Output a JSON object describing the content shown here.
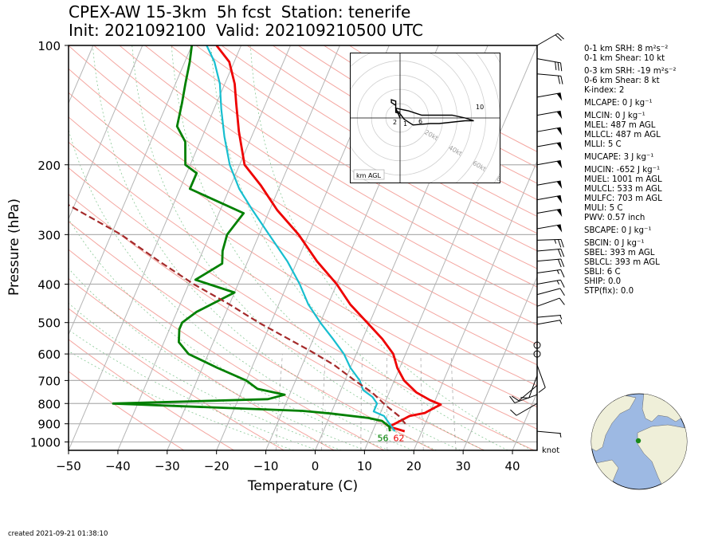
{
  "title_line1": "CPEX-AW 15-3km  5h fcst  Station: tenerife",
  "title_line2": "Init: 2021092100  Valid: 202109210500 UTC",
  "created": "created 2021-09-21 01:38:10",
  "wind_unit": "knot",
  "hodograph": {
    "label": "km AGL",
    "ring_labels": [
      "20kt",
      "40kt",
      "60kt",
      "80kt"
    ],
    "height_labels": [
      "2",
      "1",
      "6",
      "10"
    ]
  },
  "surface_labels": {
    "dewpoint": "56",
    "temperature": "62"
  },
  "indices": [
    {
      "label": "0-1 km SRH: 8 m²s⁻²"
    },
    {
      "label": "0-1 km Shear: 10 kt"
    },
    {
      "label": "0-3 km SRH: -19 m²s⁻²"
    },
    {
      "label": "0-6 km Shear: 8 kt"
    },
    {
      "label": "K-index: 2"
    },
    {
      "label": "MLCAPE: 0 J kg⁻¹"
    },
    {
      "label": "MLCIN: 0 J kg⁻¹"
    },
    {
      "label": "MLEL: 487 m AGL"
    },
    {
      "label": "MLLCL: 487 m AGL"
    },
    {
      "label": "MLLI: 5 C"
    },
    {
      "label": "MUCAPE: 3 J kg⁻¹"
    },
    {
      "label": "MUCIN: -652 J kg⁻¹"
    },
    {
      "label": "MUEL: 1001 m AGL"
    },
    {
      "label": "MULCL: 533 m AGL"
    },
    {
      "label": "MULFC: 703 m AGL"
    },
    {
      "label": "MULI: 5 C"
    },
    {
      "label": "PWV: 0.57 inch"
    },
    {
      "label": "SBCAPE: 0 J kg⁻¹"
    },
    {
      "label": "SBCIN: 0 J kg⁻¹"
    },
    {
      "label": "SBEL: 393 m AGL"
    },
    {
      "label": "SBLCL: 393 m AGL"
    },
    {
      "label": "SBLI: 6 C"
    },
    {
      "label": "SHIP: 0.0"
    },
    {
      "label": "STP(fix): 0.0"
    }
  ],
  "chart_data": {
    "type": "line",
    "subtype": "skew-T log-P sounding",
    "xlabel": "Temperature (C)",
    "ylabel": "Pressure (hPa)",
    "xlim": [
      -50,
      45
    ],
    "ylim": [
      1050,
      100
    ],
    "yscale": "log",
    "x_ticks": [
      "−50",
      "−40",
      "−30",
      "−20",
      "−10",
      "0",
      "10",
      "20",
      "30",
      "40"
    ],
    "x_tick_values": [
      -50,
      -40,
      -30,
      -20,
      -10,
      0,
      10,
      20,
      30,
      40
    ],
    "y_ticks": [
      "100",
      "200",
      "300",
      "400",
      "500",
      "600",
      "700",
      "800",
      "900",
      "1000"
    ],
    "y_tick_values": [
      100,
      200,
      300,
      400,
      500,
      600,
      700,
      800,
      900,
      1000
    ],
    "colors": {
      "temperature": "#ee0000",
      "dewpoint": "#008000",
      "wetbulb": "#17becf",
      "parcel": "#a52a2a"
    },
    "series": [
      {
        "key": "temperature",
        "points": [
          [
            16.5,
            940
          ],
          [
            13,
            915
          ],
          [
            16.2,
            860
          ],
          [
            19,
            845
          ],
          [
            20.5,
            820
          ],
          [
            21.5,
            805
          ],
          [
            19,
            785
          ],
          [
            15.5,
            750
          ],
          [
            12,
            700
          ],
          [
            9.5,
            650
          ],
          [
            7.5,
            600
          ],
          [
            4,
            550
          ],
          [
            -0.5,
            500
          ],
          [
            -5.5,
            450
          ],
          [
            -10,
            400
          ],
          [
            -16,
            350
          ],
          [
            -22,
            300
          ],
          [
            -28.5,
            260
          ],
          [
            -34,
            225
          ],
          [
            -39,
            200
          ],
          [
            -43,
            165
          ],
          [
            -46,
            140
          ],
          [
            -48,
            125
          ],
          [
            -51,
            110
          ],
          [
            -55,
            100
          ]
        ]
      },
      {
        "key": "wetbulb",
        "points": [
          [
            14.5,
            940
          ],
          [
            13,
            905
          ],
          [
            11,
            860
          ],
          [
            8.5,
            838
          ],
          [
            8.5,
            800
          ],
          [
            7,
            770
          ],
          [
            4.5,
            740
          ],
          [
            3,
            700
          ],
          [
            0,
            650
          ],
          [
            -2.5,
            600
          ],
          [
            -6,
            550
          ],
          [
            -10,
            500
          ],
          [
            -14,
            450
          ],
          [
            -17.5,
            400
          ],
          [
            -22,
            350
          ],
          [
            -28,
            300
          ],
          [
            -33.5,
            260
          ],
          [
            -38,
            230
          ],
          [
            -42,
            200
          ],
          [
            -45.5,
            170
          ],
          [
            -48.5,
            145
          ],
          [
            -51,
            125
          ],
          [
            -54,
            110
          ],
          [
            -57,
            100
          ]
        ]
      },
      {
        "key": "dewpoint",
        "points": [
          [
            13.5,
            940
          ],
          [
            13,
            915
          ],
          [
            11,
            885
          ],
          [
            8,
            870
          ],
          [
            0,
            848
          ],
          [
            -6,
            835
          ],
          [
            -45,
            800
          ],
          [
            -14,
            780
          ],
          [
            -11,
            760
          ],
          [
            -17,
            735
          ],
          [
            -20,
            700
          ],
          [
            -27,
            650
          ],
          [
            -34,
            600
          ],
          [
            -37,
            560
          ],
          [
            -38,
            520
          ],
          [
            -38,
            500
          ],
          [
            -36,
            470
          ],
          [
            -30,
            420
          ],
          [
            -39,
            390
          ],
          [
            -35,
            355
          ],
          [
            -36,
            330
          ],
          [
            -36.5,
            300
          ],
          [
            -35,
            265
          ],
          [
            -48,
            230
          ],
          [
            -48,
            210
          ],
          [
            -51,
            200
          ],
          [
            -53,
            175
          ],
          [
            -56,
            160
          ],
          [
            -57,
            140
          ],
          [
            -58,
            125
          ],
          [
            -59,
            110
          ],
          [
            -60,
            100
          ]
        ]
      },
      {
        "key": "parcel",
        "points": [
          [
            16,
            900
          ],
          [
            14,
            860
          ],
          [
            10.5,
            810
          ],
          [
            6.5,
            750
          ],
          [
            2,
            700
          ],
          [
            -3.5,
            640
          ],
          [
            -9.5,
            590
          ],
          [
            -15,
            550
          ],
          [
            -22.5,
            500
          ],
          [
            -30,
            450
          ],
          [
            -39,
            400
          ],
          [
            -48,
            350
          ],
          [
            -58,
            300
          ],
          [
            -72,
            250
          ],
          [
            -88,
            200
          ],
          [
            -100,
            165
          ],
          [
            -115,
            135
          ]
        ]
      }
    ],
    "surface": {
      "temperature_f": 62,
      "dewpoint_f": 56
    },
    "wind_barbs": [
      {
        "p": 940,
        "spd": 5,
        "dir": 95
      },
      {
        "p": 800,
        "spd": 10,
        "dir": 240
      },
      {
        "p": 760,
        "spd": 10,
        "dir": 250
      },
      {
        "p": 720,
        "spd": 10,
        "dir": 230
      },
      {
        "p": 680,
        "spd": 10,
        "dir": 200
      },
      {
        "p": 640,
        "spd": 10,
        "dir": 160
      },
      {
        "p": 600,
        "spd": 0,
        "dir": 0
      },
      {
        "p": 570,
        "spd": 0,
        "dir": 0
      },
      {
        "p": 505,
        "spd": 5,
        "dir": 80
      },
      {
        "p": 485,
        "spd": 5,
        "dir": 85
      },
      {
        "p": 455,
        "spd": 10,
        "dir": 70
      },
      {
        "p": 425,
        "spd": 10,
        "dir": 75
      },
      {
        "p": 400,
        "spd": 15,
        "dir": 80
      },
      {
        "p": 375,
        "spd": 15,
        "dir": 82
      },
      {
        "p": 350,
        "spd": 20,
        "dir": 85
      },
      {
        "p": 330,
        "spd": 20,
        "dir": 85
      },
      {
        "p": 310,
        "spd": 25,
        "dir": 88
      },
      {
        "p": 290,
        "spd": 50,
        "dir": 80
      },
      {
        "p": 265,
        "spd": 50,
        "dir": 80
      },
      {
        "p": 245,
        "spd": 50,
        "dir": 80
      },
      {
        "p": 225,
        "spd": 50,
        "dir": 80
      },
      {
        "p": 200,
        "spd": 50,
        "dir": 80
      },
      {
        "p": 180,
        "spd": 50,
        "dir": 80
      },
      {
        "p": 165,
        "spd": 50,
        "dir": 80
      },
      {
        "p": 150,
        "spd": 50,
        "dir": 80
      },
      {
        "p": 135,
        "spd": 50,
        "dir": 80
      },
      {
        "p": 118,
        "spd": 20,
        "dir": 95
      },
      {
        "p": 108,
        "spd": 30,
        "dir": 100
      },
      {
        "p": 100,
        "spd": 20,
        "dir": 60
      }
    ],
    "hodograph_points_kt": [
      [
        0,
        0
      ],
      [
        -1,
        -7
      ],
      [
        2,
        -5
      ],
      [
        5,
        -2
      ],
      [
        12,
        -2
      ],
      [
        15,
        0
      ],
      [
        17,
        2
      ],
      [
        15,
        2
      ],
      [
        9,
        4
      ],
      [
        7,
        4
      ],
      [
        3,
        5
      ],
      [
        1,
        1
      ],
      [
        0,
        -3
      ],
      [
        -1,
        -4
      ],
      [
        -1,
        -9
      ],
      [
        -2,
        -11
      ],
      [
        -2,
        -13
      ],
      [
        -1,
        -12
      ],
      [
        -1,
        -5
      ],
      [
        0,
        -4
      ]
    ]
  }
}
